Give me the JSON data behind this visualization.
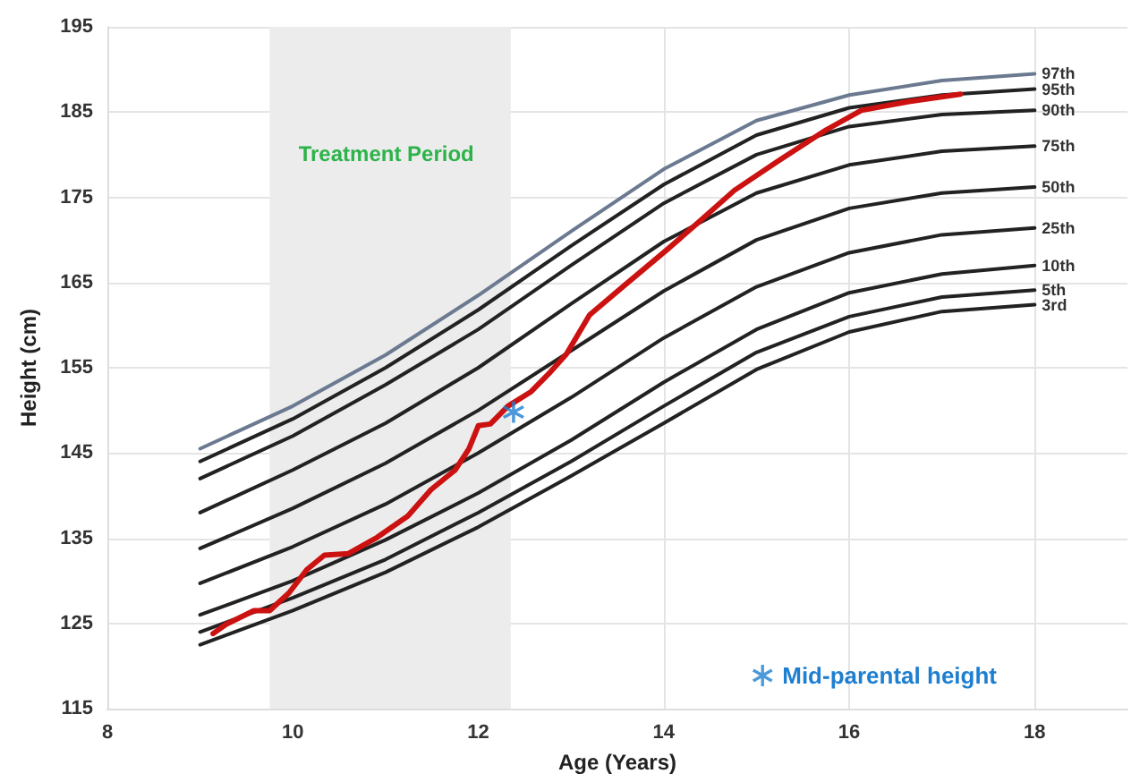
{
  "chart_data": {
    "type": "line",
    "xlabel": "Age (Years)",
    "ylabel": "Height (cm)",
    "xlim": [
      8,
      19
    ],
    "xticks": [
      8,
      10,
      12,
      14,
      16,
      18
    ],
    "ylim": [
      115,
      195
    ],
    "yticks": [
      115,
      125,
      135,
      145,
      155,
      165,
      175,
      185,
      195
    ],
    "grid": true,
    "legend": "bottom right",
    "marker": "none",
    "line_style": "solid",
    "x": [
      9,
      10,
      11,
      12,
      13,
      14,
      15,
      16,
      17,
      18
    ],
    "series": [
      {
        "name": "97th",
        "color": "#6b7a90",
        "values": [
          145.5,
          150.5,
          156.5,
          163.5,
          171,
          178.3,
          184,
          187,
          188.7,
          189.5
        ]
      },
      {
        "name": "95th",
        "color": "#222222",
        "values": [
          144,
          149,
          155,
          161.8,
          169.3,
          176.5,
          182.3,
          185.5,
          187,
          187.7
        ]
      },
      {
        "name": "90th",
        "color": "#222222",
        "values": [
          142,
          147,
          153,
          159.5,
          167,
          174.3,
          180,
          183.3,
          184.7,
          185.2
        ]
      },
      {
        "name": "75th",
        "color": "#222222",
        "values": [
          138,
          143,
          148.5,
          155,
          162.5,
          169.8,
          175.5,
          178.8,
          180.4,
          181
        ]
      },
      {
        "name": "50th",
        "color": "#222222",
        "values": [
          133.8,
          138.5,
          143.8,
          150,
          157,
          164,
          170,
          173.7,
          175.5,
          176.2
        ]
      },
      {
        "name": "25th",
        "color": "#222222",
        "values": [
          129.7,
          134,
          139,
          145,
          151.5,
          158.5,
          164.5,
          168.5,
          170.6,
          171.4
        ]
      },
      {
        "name": "10th",
        "color": "#222222",
        "values": [
          126,
          130,
          134.8,
          140.3,
          146.5,
          153.3,
          159.5,
          163.8,
          166,
          167
        ]
      },
      {
        "name": "5th",
        "color": "#222222",
        "values": [
          124,
          128,
          132.5,
          138,
          144,
          150.5,
          156.8,
          161,
          163.3,
          164.1
        ]
      },
      {
        "name": "3rd",
        "color": "#222222",
        "values": [
          122.5,
          126.5,
          131,
          136.3,
          142.3,
          148.5,
          154.8,
          159.2,
          161.6,
          162.4
        ]
      },
      {
        "color": "#cc1111",
        "x": [
          9.14,
          9.28,
          9.58,
          9.75,
          9.96,
          10.15,
          10.34,
          10.6,
          10.91,
          11.24,
          11.49,
          11.75,
          11.9,
          12,
          12.13,
          12.32,
          12.57,
          12.76,
          12.95,
          13.2,
          13.58,
          14.04,
          14.42,
          14.76,
          15.24,
          15.75,
          16.13,
          16.63,
          17.2
        ],
        "values": [
          123.8,
          124.9,
          126.5,
          126.5,
          128.6,
          131.3,
          133,
          133.2,
          135.1,
          137.6,
          140.7,
          143,
          145.5,
          148.2,
          148.4,
          150.5,
          152.2,
          154.3,
          156.6,
          161.2,
          164.7,
          168.9,
          172.5,
          175.8,
          179.3,
          182.9,
          185.2,
          186.2,
          187.1
        ]
      },
      {
        "name": "Mid-parental height",
        "type": "scatter",
        "marker": "star",
        "color": "#1e7fd0",
        "x": [
          12.38
        ],
        "values": [
          149.8
        ]
      }
    ],
    "bands": [
      {
        "axis": "x",
        "from": 9.75,
        "to": 12.35,
        "label": "Treatment Period",
        "color": "#ececec"
      }
    ]
  }
}
